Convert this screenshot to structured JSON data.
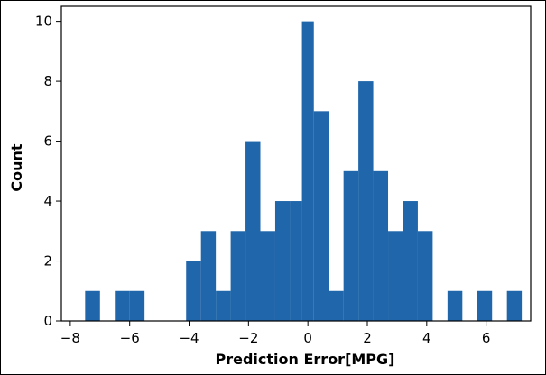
{
  "chart_data": {
    "type": "bar",
    "title": "",
    "xlabel": "Prediction Error[MPG]",
    "ylabel": "Count",
    "xlim": [
      -8.3,
      7.5
    ],
    "ylim": [
      0,
      10.5
    ],
    "x_ticks": [
      -8,
      -6,
      -4,
      -2,
      0,
      2,
      4,
      6
    ],
    "x_tick_labels": [
      "−8",
      "−6",
      "−4",
      "−2",
      "0",
      "2",
      "4",
      "6"
    ],
    "y_ticks": [
      0,
      2,
      4,
      6,
      8,
      10
    ],
    "y_tick_labels": [
      "0",
      "2",
      "4",
      "6",
      "8",
      "10"
    ],
    "bar_color": "#1f66aa",
    "grid": false,
    "bins": [
      {
        "x0": -7.5,
        "x1": -7.0,
        "count": 1
      },
      {
        "x0": -6.5,
        "x1": -6.0,
        "count": 1
      },
      {
        "x0": -6.0,
        "x1": -5.5,
        "count": 1
      },
      {
        "x0": -4.1,
        "x1": -3.6,
        "count": 2
      },
      {
        "x0": -3.6,
        "x1": -3.1,
        "count": 3
      },
      {
        "x0": -3.1,
        "x1": -2.6,
        "count": 1
      },
      {
        "x0": -2.6,
        "x1": -2.1,
        "count": 3
      },
      {
        "x0": -2.1,
        "x1": -1.6,
        "count": 6
      },
      {
        "x0": -1.6,
        "x1": -1.1,
        "count": 3
      },
      {
        "x0": -1.1,
        "x1": -0.6,
        "count": 4
      },
      {
        "x0": -0.6,
        "x1": -0.2,
        "count": 4
      },
      {
        "x0": -0.2,
        "x1": 0.2,
        "count": 10
      },
      {
        "x0": 0.2,
        "x1": 0.7,
        "count": 7
      },
      {
        "x0": 0.7,
        "x1": 1.2,
        "count": 1
      },
      {
        "x0": 1.2,
        "x1": 1.7,
        "count": 5
      },
      {
        "x0": 1.7,
        "x1": 2.2,
        "count": 8
      },
      {
        "x0": 2.2,
        "x1": 2.7,
        "count": 5
      },
      {
        "x0": 2.7,
        "x1": 3.2,
        "count": 3
      },
      {
        "x0": 3.2,
        "x1": 3.7,
        "count": 4
      },
      {
        "x0": 3.7,
        "x1": 4.2,
        "count": 3
      },
      {
        "x0": 4.7,
        "x1": 5.2,
        "count": 1
      },
      {
        "x0": 5.7,
        "x1": 6.2,
        "count": 1
      },
      {
        "x0": 6.7,
        "x1": 7.2,
        "count": 1
      }
    ]
  }
}
